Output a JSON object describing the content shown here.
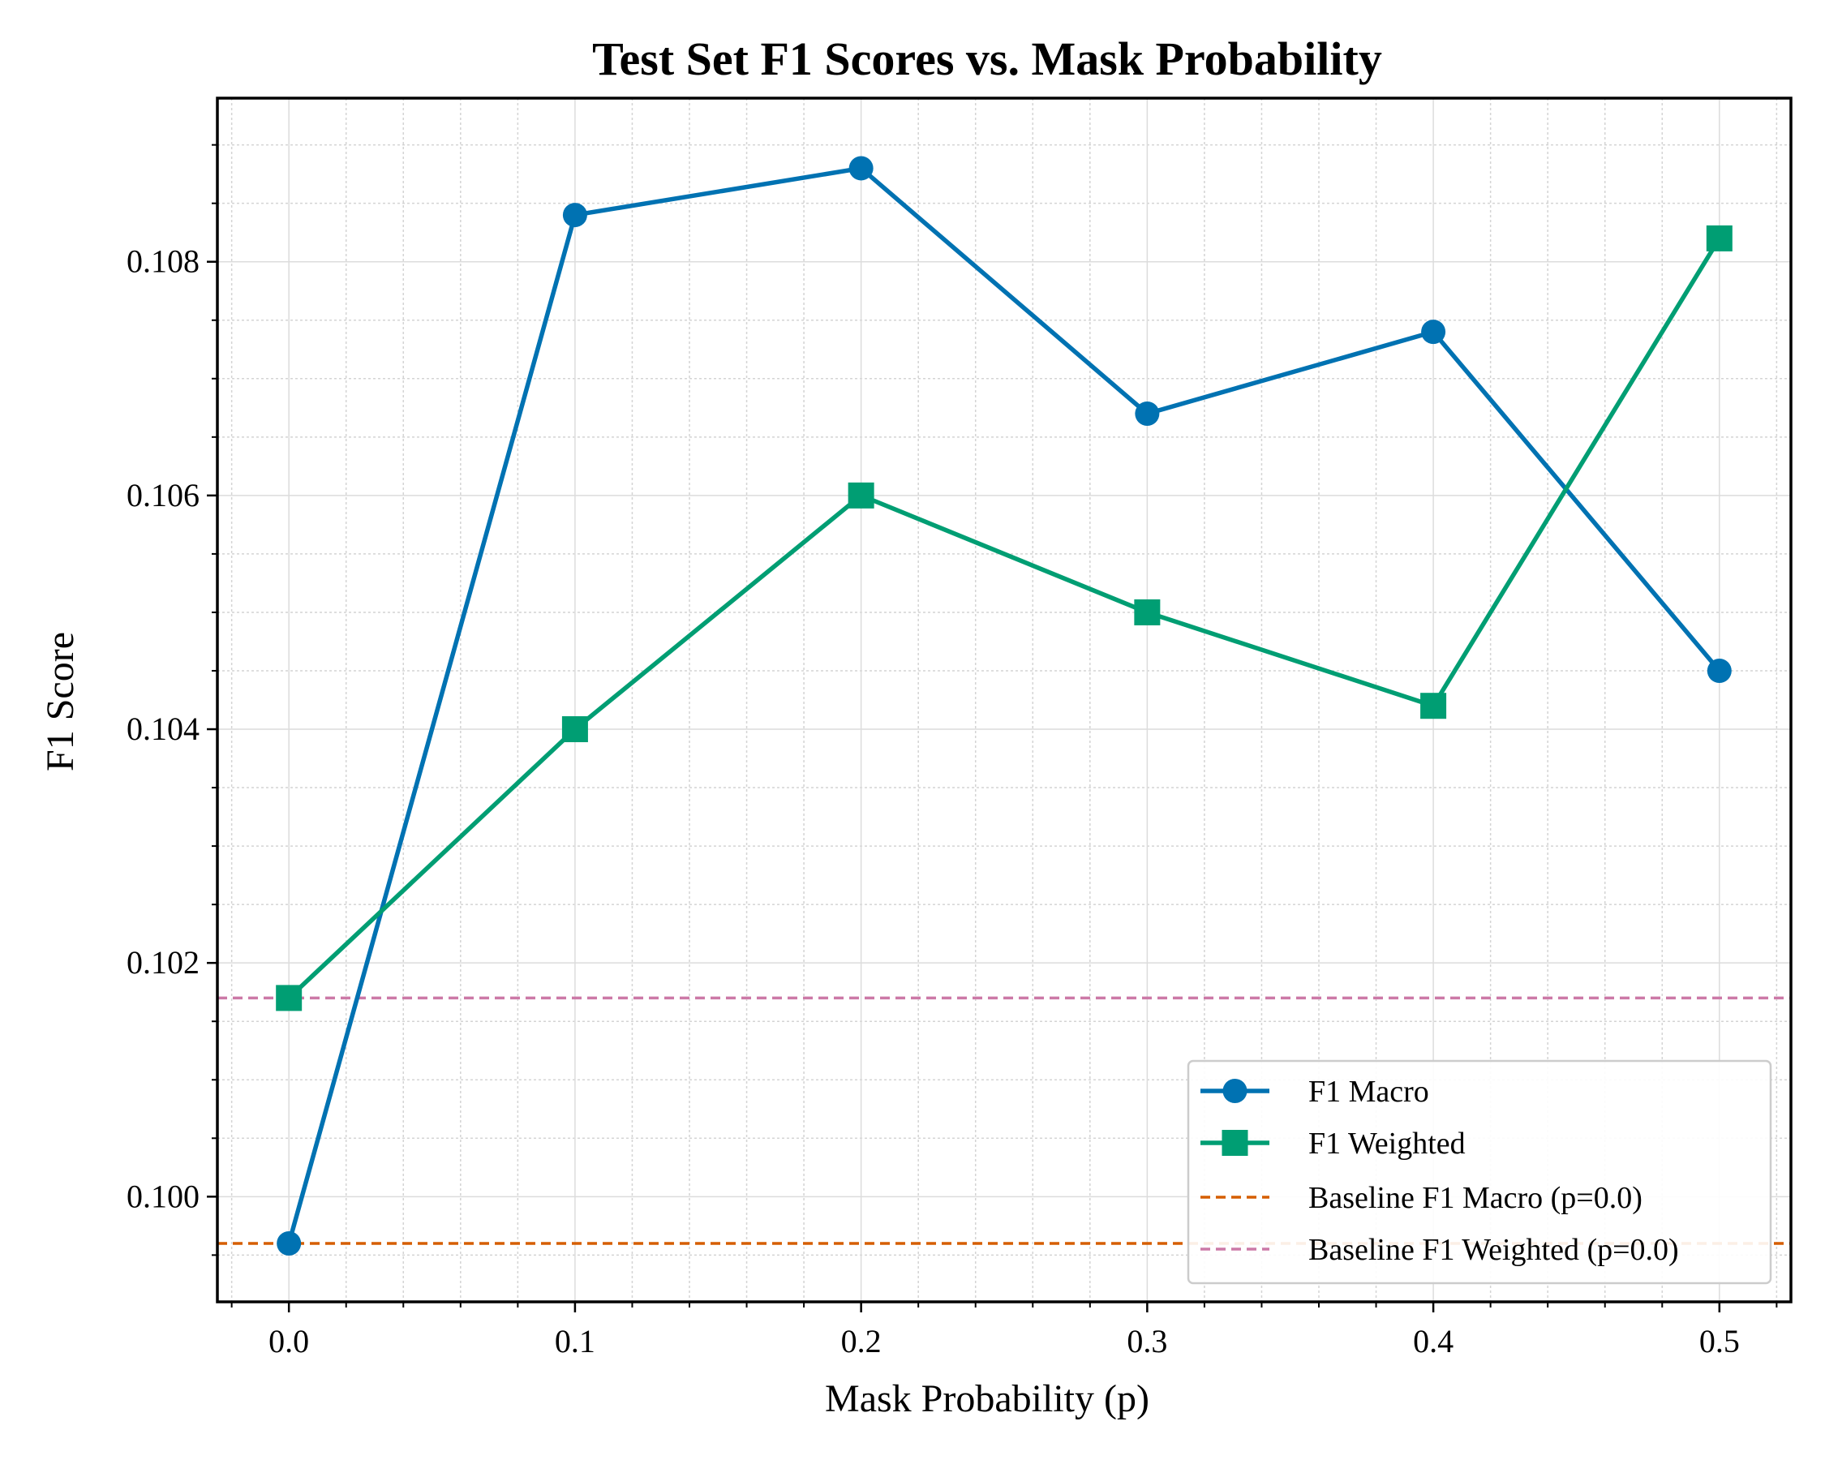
{
  "chart_data": {
    "type": "line",
    "title": "Test Set F1 Scores vs. Mask Probability",
    "xlabel": "Mask Probability (p)",
    "ylabel": "F1 Score",
    "x": [
      0.0,
      0.1,
      0.2,
      0.3,
      0.4,
      0.5
    ],
    "xticks": [
      "0.0",
      "0.1",
      "0.2",
      "0.3",
      "0.4",
      "0.5"
    ],
    "yticks": [
      "0.100",
      "0.102",
      "0.104",
      "0.106",
      "0.108"
    ],
    "xlim": [
      -0.025,
      0.525
    ],
    "ylim": [
      0.0991,
      0.1094
    ],
    "grid": true,
    "legend_position": "lower-right",
    "series": [
      {
        "name": "F1 Macro",
        "values": [
          0.0996,
          0.1084,
          0.1088,
          0.1067,
          0.1074,
          0.1045
        ],
        "color": "#0072b2",
        "marker": "circle"
      },
      {
        "name": "F1 Weighted",
        "values": [
          0.1017,
          0.104,
          0.106,
          0.105,
          0.1042,
          0.1082
        ],
        "color": "#009e73",
        "marker": "square"
      }
    ],
    "baselines": [
      {
        "name": "Baseline F1 Macro (p=0.0)",
        "value": 0.0996,
        "color": "#d55e00"
      },
      {
        "name": "Baseline F1 Weighted (p=0.0)",
        "value": 0.1017,
        "color": "#cc79a7"
      }
    ]
  }
}
